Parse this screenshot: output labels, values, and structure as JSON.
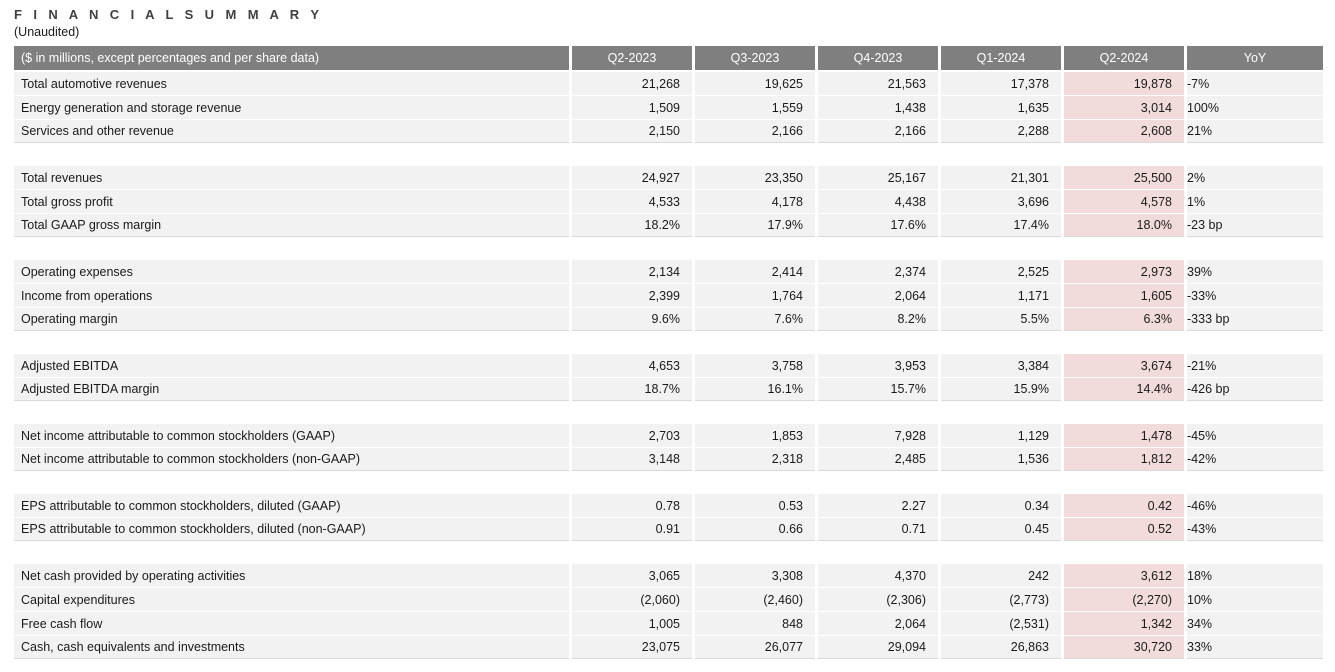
{
  "page": {
    "title": "F I N A N C I A L   S U M M A R Y",
    "subtitle": "(Unaudited)"
  },
  "table": {
    "header": {
      "label": "($ in millions, except percentages and per share data)",
      "columns": [
        "Q2-2023",
        "Q3-2023",
        "Q4-2023",
        "Q1-2024",
        "Q2-2024",
        "YoY"
      ]
    },
    "highlight_column": "Q2-2024",
    "highlight_column_index": 4,
    "colors": {
      "header_bg": "#7f7f7f",
      "header_text": "#ffffff",
      "row_bg": "#f2f2f2",
      "highlight_bg": "#f2dcdb",
      "text": "#1a1a1a"
    },
    "groups": [
      {
        "rows": [
          {
            "label": "Total automotive revenues",
            "values": [
              "21,268",
              "19,625",
              "21,563",
              "17,378",
              "19,878",
              "-7%"
            ]
          },
          {
            "label": "Energy generation and storage revenue",
            "values": [
              "1,509",
              "1,559",
              "1,438",
              "1,635",
              "3,014",
              "100%"
            ]
          },
          {
            "label": "Services and other revenue",
            "values": [
              "2,150",
              "2,166",
              "2,166",
              "2,288",
              "2,608",
              "21%"
            ]
          }
        ]
      },
      {
        "rows": [
          {
            "label": "Total revenues",
            "values": [
              "24,927",
              "23,350",
              "25,167",
              "21,301",
              "25,500",
              "2%"
            ]
          },
          {
            "label": "Total gross profit",
            "values": [
              "4,533",
              "4,178",
              "4,438",
              "3,696",
              "4,578",
              "1%"
            ]
          },
          {
            "label": "Total GAAP gross margin",
            "values": [
              "18.2%",
              "17.9%",
              "17.6%",
              "17.4%",
              "18.0%",
              "-23 bp"
            ]
          }
        ]
      },
      {
        "rows": [
          {
            "label": "Operating expenses",
            "values": [
              "2,134",
              "2,414",
              "2,374",
              "2,525",
              "2,973",
              "39%"
            ]
          },
          {
            "label": "Income from operations",
            "values": [
              "2,399",
              "1,764",
              "2,064",
              "1,171",
              "1,605",
              "-33%"
            ]
          },
          {
            "label": "Operating margin",
            "values": [
              "9.6%",
              "7.6%",
              "8.2%",
              "5.5%",
              "6.3%",
              "-333 bp"
            ]
          }
        ]
      },
      {
        "rows": [
          {
            "label": "Adjusted EBITDA",
            "values": [
              "4,653",
              "3,758",
              "3,953",
              "3,384",
              "3,674",
              "-21%"
            ]
          },
          {
            "label": "Adjusted EBITDA margin",
            "values": [
              "18.7%",
              "16.1%",
              "15.7%",
              "15.9%",
              "14.4%",
              "-426 bp"
            ]
          }
        ]
      },
      {
        "rows": [
          {
            "label": "Net income attributable to common stockholders (GAAP)",
            "values": [
              "2,703",
              "1,853",
              "7,928",
              "1,129",
              "1,478",
              "-45%"
            ]
          },
          {
            "label": "Net income attributable to common stockholders (non-GAAP)",
            "values": [
              "3,148",
              "2,318",
              "2,485",
              "1,536",
              "1,812",
              "-42%"
            ]
          }
        ]
      },
      {
        "rows": [
          {
            "label": "EPS attributable to common stockholders, diluted (GAAP)",
            "values": [
              "0.78",
              "0.53",
              "2.27",
              "0.34",
              "0.42",
              "-46%"
            ]
          },
          {
            "label": "EPS attributable to common stockholders, diluted (non-GAAP)",
            "values": [
              "0.91",
              "0.66",
              "0.71",
              "0.45",
              "0.52",
              "-43%"
            ]
          }
        ]
      },
      {
        "rows": [
          {
            "label": "Net cash provided by operating activities",
            "values": [
              "3,065",
              "3,308",
              "4,370",
              "242",
              "3,612",
              "18%"
            ]
          },
          {
            "label": "Capital expenditures",
            "values": [
              "(2,060)",
              "(2,460)",
              "(2,306)",
              "(2,773)",
              "(2,270)",
              "10%"
            ]
          },
          {
            "label": "Free cash flow",
            "values": [
              "1,005",
              "848",
              "2,064",
              "(2,531)",
              "1,342",
              "34%"
            ]
          },
          {
            "label": "Cash, cash equivalents and investments",
            "values": [
              "23,075",
              "26,077",
              "29,094",
              "26,863",
              "30,720",
              "33%"
            ]
          }
        ]
      }
    ]
  }
}
